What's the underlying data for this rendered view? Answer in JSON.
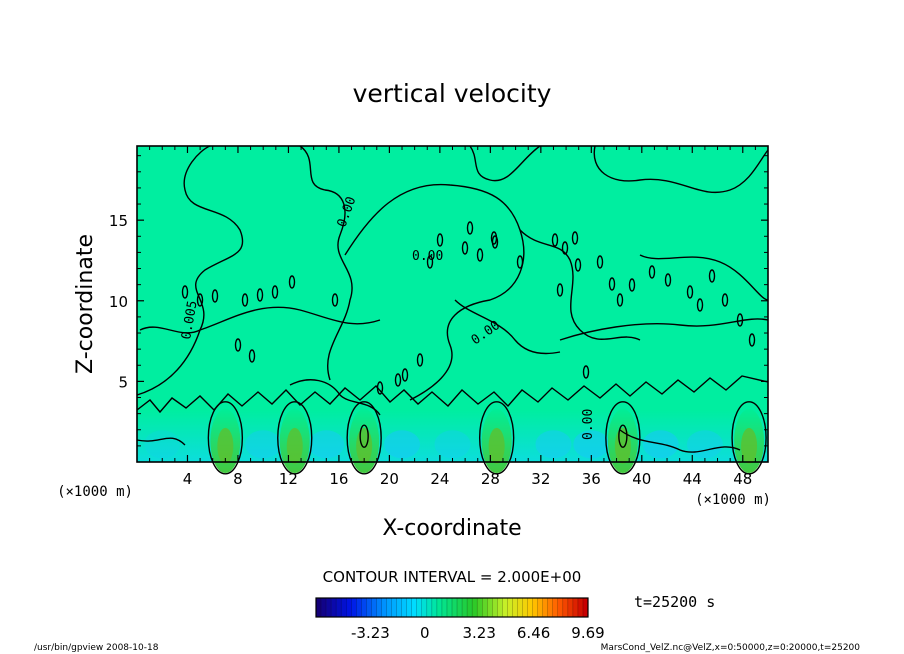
{
  "chart_data": {
    "type": "heatmap",
    "title": "vertical velocity",
    "xlabel": "X-coordinate",
    "ylabel": "Z-coordinate",
    "x_unit": "(×1000 m)",
    "y_unit": "(×1000 m)",
    "xlim": [
      0,
      50
    ],
    "ylim": [
      0,
      19.6
    ],
    "x_ticks": [
      4,
      8,
      12,
      16,
      20,
      24,
      28,
      32,
      36,
      40,
      44,
      48
    ],
    "x_tick_labels": [
      "4",
      "8",
      "12",
      "16",
      "20",
      "24",
      "28",
      "32",
      "36",
      "40",
      "44",
      "48"
    ],
    "y_ticks": [
      5,
      10,
      15
    ],
    "y_tick_labels": [
      "5",
      "10",
      "15"
    ],
    "contour_interval_text": "CONTOUR INTERVAL = 2.000E+00",
    "contour_labels": [
      "0.00",
      "0.00",
      "0.00",
      "0.005",
      "0.00"
    ],
    "time_label": "t=25200 s",
    "colorbar": {
      "tick_values": [
        -3.23,
        0,
        3.23,
        6.46,
        9.69
      ],
      "tick_labels": [
        "-3.23",
        "0",
        "3.23",
        "6.46",
        "9.69"
      ],
      "range": [
        -6.46,
        9.69
      ]
    },
    "updraft_x_positions": [
      7,
      12.5,
      18,
      28.5,
      38.5,
      48.5
    ],
    "footer_left": "/usr/bin/gpview  2008-10-18",
    "footer_right": "MarsCond_VelZ.nc@VelZ,x=0:50000,z=0:20000,t=25200"
  }
}
